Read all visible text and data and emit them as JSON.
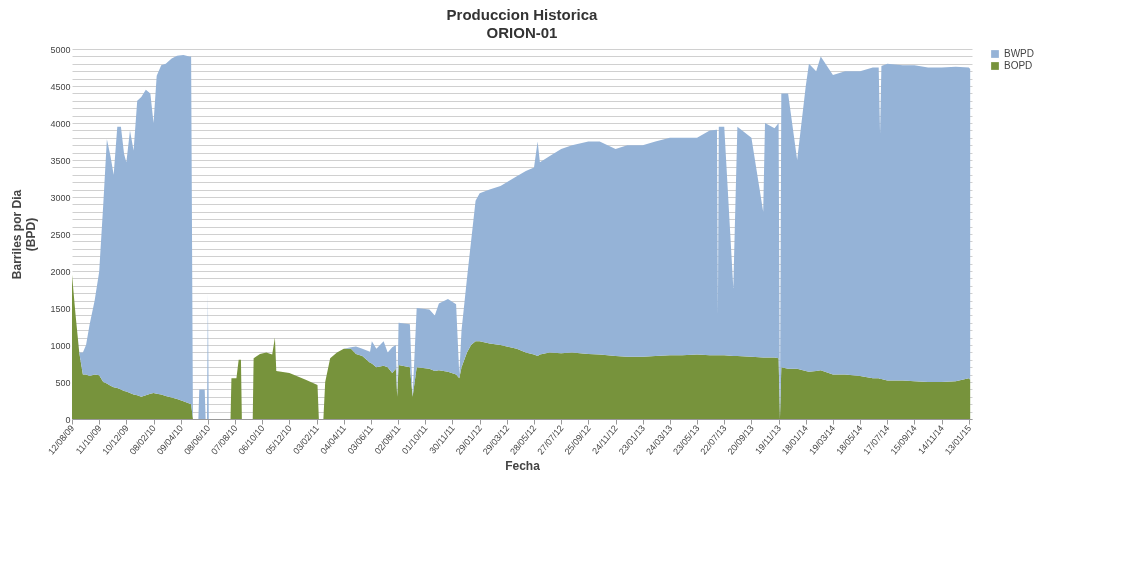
{
  "chart_data": {
    "type": "area",
    "stacked": true,
    "title": "Produccion Historica",
    "subtitle": "ORION-01",
    "xlabel": "Fecha",
    "ylabel": "Barriles  por  Dia\n(BPD)",
    "legend": "right",
    "grid": "y",
    "x": [
      "2009-08-12",
      "2009-08-20",
      "2009-08-28",
      "2009-09-05",
      "2009-09-12",
      "2009-09-20",
      "2009-10-01",
      "2009-10-11",
      "2009-10-20",
      "2009-10-28",
      "2009-11-05",
      "2009-11-12",
      "2009-11-20",
      "2009-11-28",
      "2009-12-05",
      "2009-12-10",
      "2009-12-18",
      "2009-12-26",
      "2010-01-03",
      "2010-01-12",
      "2010-01-22",
      "2010-02-01",
      "2010-02-08",
      "2010-02-15",
      "2010-02-25",
      "2010-03-07",
      "2010-03-20",
      "2010-04-01",
      "2010-04-15",
      "2010-04-28",
      "2010-05-02",
      "2010-05-06",
      "2010-05-18",
      "2010-05-20",
      "2010-06-01",
      "2010-06-03",
      "2010-06-06",
      "2010-06-08",
      "2010-06-10",
      "2010-07-28",
      "2010-07-30",
      "2010-08-10",
      "2010-08-15",
      "2010-08-20",
      "2010-08-22",
      "2010-09-15",
      "2010-09-17",
      "2010-10-01",
      "2010-10-15",
      "2010-10-28",
      "2010-11-03",
      "2010-11-06",
      "2010-12-05",
      "2011-01-10",
      "2011-02-05",
      "2011-02-08",
      "2011-02-18",
      "2011-02-22",
      "2011-03-05",
      "2011-03-20",
      "2011-04-04",
      "2011-04-20",
      "2011-05-01",
      "2011-05-15",
      "2011-06-01",
      "2011-06-05",
      "2011-06-15",
      "2011-07-01",
      "2011-07-10",
      "2011-07-20",
      "2011-07-28",
      "2011-07-31",
      "2011-08-03",
      "2011-08-28",
      "2011-09-03",
      "2011-09-12",
      "2011-10-10",
      "2011-10-22",
      "2011-10-31",
      "2011-11-20",
      "2011-12-08",
      "2011-12-15",
      "2011-12-20",
      "2012-01-01",
      "2012-01-10",
      "2012-01-20",
      "2012-01-29",
      "2012-02-20",
      "2012-03-15",
      "2012-03-29",
      "2012-04-20",
      "2012-05-10",
      "2012-05-28",
      "2012-06-05",
      "2012-06-10",
      "2012-07-01",
      "2012-07-27",
      "2012-08-20",
      "2012-09-25",
      "2012-10-20",
      "2012-11-24",
      "2012-12-20",
      "2013-01-23",
      "2013-02-20",
      "2013-03-24",
      "2013-04-20",
      "2013-05-23",
      "2013-06-20",
      "2013-07-06",
      "2013-07-08",
      "2013-07-10",
      "2013-07-22",
      "2013-08-11",
      "2013-08-20",
      "2013-09-20",
      "2013-10-16",
      "2013-10-20",
      "2013-11-10",
      "2013-11-19",
      "2013-11-22",
      "2013-11-25",
      "2013-12-10",
      "2013-12-30",
      "2014-01-18",
      "2014-01-25",
      "2014-02-10",
      "2014-02-20",
      "2014-03-19",
      "2014-04-15",
      "2014-05-18",
      "2014-06-15",
      "2014-06-28",
      "2014-07-01",
      "2014-07-04",
      "2014-07-17",
      "2014-08-20",
      "2014-09-15",
      "2014-10-15",
      "2014-11-14",
      "2014-12-15",
      "2015-01-13",
      "2015-01-16"
    ],
    "series": [
      {
        "name": "BOPD",
        "color": "#77933c",
        "values": [
          1950,
          1400,
          900,
          600,
          600,
          580,
          600,
          590,
          500,
          480,
          450,
          430,
          420,
          400,
          380,
          370,
          350,
          330,
          320,
          300,
          320,
          340,
          350,
          340,
          330,
          310,
          290,
          270,
          240,
          210,
          200,
          0,
          0,
          0,
          0,
          0,
          0,
          0,
          0,
          0,
          550,
          550,
          800,
          800,
          0,
          0,
          820,
          880,
          900,
          870,
          1100,
          650,
          620,
          530,
          460,
          0,
          0,
          500,
          820,
          900,
          950,
          950,
          880,
          850,
          760,
          750,
          700,
          720,
          700,
          620,
          680,
          300,
          730,
          700,
          300,
          700,
          680,
          650,
          660,
          640,
          600,
          550,
          700,
          900,
          1000,
          1050,
          1050,
          1020,
          1000,
          980,
          950,
          900,
          870,
          850,
          870,
          900,
          890,
          900,
          880,
          870,
          850,
          840,
          840,
          850,
          860,
          860,
          870,
          860,
          860,
          860,
          860,
          860,
          850,
          850,
          840,
          830,
          830,
          830,
          820,
          0,
          700,
          680,
          680,
          650,
          640,
          650,
          660,
          600,
          600,
          580,
          550,
          550,
          540,
          540,
          520,
          520,
          510,
          500,
          500,
          510,
          550,
          530
        ]
      },
      {
        "name": "BWPD",
        "color": "#95b3d7",
        "values": [
          0,
          0,
          0,
          300,
          400,
          700,
          1000,
          1400,
          2400,
          3300,
          3100,
          2870,
          3530,
          3550,
          3200,
          3100,
          3550,
          3300,
          3980,
          4050,
          4130,
          4060,
          3650,
          4300,
          4450,
          4490,
          4580,
          4640,
          4680,
          4690,
          4700,
          0,
          0,
          400,
          400,
          0,
          0,
          1700,
          0,
          0,
          0,
          0,
          0,
          0,
          0,
          0,
          0,
          0,
          0,
          0,
          0,
          0,
          0,
          0,
          0,
          0,
          0,
          0,
          0,
          0,
          0,
          20,
          100,
          100,
          150,
          300,
          250,
          330,
          200,
          350,
          320,
          0,
          570,
          580,
          0,
          800,
          800,
          750,
          900,
          980,
          950,
          50,
          500,
          1000,
          1400,
          1900,
          2000,
          2080,
          2150,
          2220,
          2330,
          2450,
          2530,
          2900,
          2600,
          2650,
          2760,
          2800,
          2870,
          2880,
          2800,
          2860,
          2860,
          2900,
          2940,
          2940,
          2930,
          3040,
          3050,
          540,
          3090,
          3090,
          920,
          3100,
          2960,
          1970,
          3170,
          3100,
          3180,
          0,
          3700,
          3720,
          2820,
          3850,
          4160,
          4050,
          4240,
          4050,
          4100,
          4120,
          4200,
          4200,
          3310,
          4230,
          4280,
          4260,
          4270,
          4250,
          4250,
          4250,
          4200,
          4200
        ]
      }
    ],
    "xlim": [
      "2009-08-12",
      "2015-01-20"
    ],
    "xticks": [
      {
        "value": "2009-08-12",
        "label": "12/08/09"
      },
      {
        "value": "2009-10-11",
        "label": "11/10/09"
      },
      {
        "value": "2009-12-10",
        "label": "10/12/09"
      },
      {
        "value": "2010-02-08",
        "label": "08/02/10"
      },
      {
        "value": "2010-04-09",
        "label": "09/04/10"
      },
      {
        "value": "2010-06-08",
        "label": "08/06/10"
      },
      {
        "value": "2010-08-07",
        "label": "07/08/10"
      },
      {
        "value": "2010-10-06",
        "label": "06/10/10"
      },
      {
        "value": "2010-12-05",
        "label": "05/12/10"
      },
      {
        "value": "2011-02-03",
        "label": "03/02/11"
      },
      {
        "value": "2011-04-04",
        "label": "04/04/11"
      },
      {
        "value": "2011-06-03",
        "label": "03/06/11"
      },
      {
        "value": "2011-08-02",
        "label": "02/08/11"
      },
      {
        "value": "2011-10-01",
        "label": "01/10/11"
      },
      {
        "value": "2011-11-30",
        "label": "30/11/11"
      },
      {
        "value": "2012-01-29",
        "label": "29/01/12"
      },
      {
        "value": "2012-03-29",
        "label": "29/03/12"
      },
      {
        "value": "2012-05-28",
        "label": "28/05/12"
      },
      {
        "value": "2012-07-27",
        "label": "27/07/12"
      },
      {
        "value": "2012-09-25",
        "label": "25/09/12"
      },
      {
        "value": "2012-11-24",
        "label": "24/11/12"
      },
      {
        "value": "2013-01-23",
        "label": "23/01/13"
      },
      {
        "value": "2013-03-24",
        "label": "24/03/13"
      },
      {
        "value": "2013-05-23",
        "label": "23/05/13"
      },
      {
        "value": "2013-07-22",
        "label": "22/07/13"
      },
      {
        "value": "2013-09-20",
        "label": "20/09/13"
      },
      {
        "value": "2013-11-19",
        "label": "19/11/13"
      },
      {
        "value": "2014-01-18",
        "label": "18/01/14"
      },
      {
        "value": "2014-03-19",
        "label": "19/03/14"
      },
      {
        "value": "2014-05-18",
        "label": "18/05/14"
      },
      {
        "value": "2014-07-17",
        "label": "17/07/14"
      },
      {
        "value": "2014-09-15",
        "label": "15/09/14"
      },
      {
        "value": "2014-11-14",
        "label": "14/11/14"
      },
      {
        "value": "2015-01-13",
        "label": "13/01/15"
      }
    ],
    "ylim": [
      0,
      5000
    ],
    "yticks": [
      0,
      {
        "value": 100,
        "label": null
      },
      {
        "value": 200,
        "label": null
      },
      {
        "value": 300,
        "label": null
      },
      {
        "value": 400,
        "label": null
      },
      500,
      {
        "value": 600,
        "label": null
      },
      {
        "value": 700,
        "label": null
      },
      {
        "value": 800,
        "label": null
      },
      {
        "value": 900,
        "label": null
      },
      1000,
      {
        "value": 1100,
        "label": null
      },
      {
        "value": 1200,
        "label": null
      },
      {
        "value": 1300,
        "label": null
      },
      {
        "value": 1400,
        "label": null
      },
      1500,
      {
        "value": 1600,
        "label": null
      },
      {
        "value": 1700,
        "label": null
      },
      {
        "value": 1800,
        "label": null
      },
      {
        "value": 1900,
        "label": null
      },
      2000,
      {
        "value": 2100,
        "label": null
      },
      {
        "value": 2200,
        "label": null
      },
      {
        "value": 2300,
        "label": null
      },
      {
        "value": 2400,
        "label": null
      },
      2500,
      {
        "value": 2600,
        "label": null
      },
      {
        "value": 2700,
        "label": null
      },
      {
        "value": 2800,
        "label": null
      },
      {
        "value": 2900,
        "label": null
      },
      3000,
      {
        "value": 3100,
        "label": null
      },
      {
        "value": 3200,
        "label": null
      },
      {
        "value": 3300,
        "label": null
      },
      {
        "value": 3400,
        "label": null
      },
      3500,
      {
        "value": 3600,
        "label": null
      },
      {
        "value": 3700,
        "label": null
      },
      {
        "value": 3800,
        "label": null
      },
      {
        "value": 3900,
        "label": null
      },
      4000,
      {
        "value": 4100,
        "label": null
      },
      {
        "value": 4200,
        "label": null
      },
      {
        "value": 4300,
        "label": null
      },
      {
        "value": 4400,
        "label": null
      },
      4500,
      {
        "value": 4600,
        "label": null
      },
      {
        "value": 4700,
        "label": null
      },
      {
        "value": 4800,
        "label": null
      },
      {
        "value": 4900,
        "label": null
      },
      5000
    ]
  }
}
